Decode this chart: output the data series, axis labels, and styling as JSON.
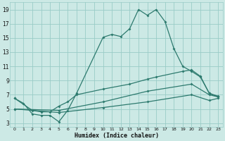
{
  "bg_color": "#cce9e5",
  "grid_color": "#99ccc7",
  "line_color": "#2d7a6e",
  "xlabel": "Humidex (Indice chaleur)",
  "xlim": [
    -0.5,
    23.5
  ],
  "ylim": [
    2.5,
    20.0
  ],
  "yticks": [
    3,
    5,
    7,
    9,
    11,
    13,
    15,
    17,
    19
  ],
  "xticks": [
    0,
    1,
    2,
    3,
    4,
    5,
    6,
    7,
    8,
    9,
    10,
    11,
    12,
    13,
    14,
    15,
    16,
    17,
    18,
    19,
    20,
    21,
    22,
    23
  ],
  "series1_x": [
    0,
    1,
    2,
    3,
    4,
    5,
    6,
    7,
    10,
    11,
    12,
    13,
    14,
    15,
    16,
    17,
    18,
    19,
    20,
    21,
    22,
    23
  ],
  "series1_y": [
    6.5,
    5.8,
    4.3,
    4.1,
    4.1,
    3.2,
    4.8,
    7.2,
    15.1,
    15.5,
    15.2,
    16.3,
    19.0,
    18.2,
    19.0,
    17.3,
    13.5,
    11.0,
    10.3,
    9.5,
    7.2,
    6.7
  ],
  "series2_x": [
    0,
    2,
    3,
    4,
    5,
    6,
    7,
    10,
    13,
    15,
    16,
    19,
    20,
    21,
    22,
    23
  ],
  "series2_y": [
    6.5,
    4.8,
    4.6,
    4.6,
    5.4,
    6.0,
    7.0,
    7.8,
    8.5,
    9.2,
    9.5,
    10.3,
    10.5,
    9.6,
    7.2,
    6.8
  ],
  "series3_x": [
    0,
    5,
    10,
    15,
    20,
    22,
    23
  ],
  "series3_y": [
    5.0,
    4.8,
    6.0,
    7.5,
    8.5,
    7.0,
    6.7
  ],
  "series4_x": [
    0,
    5,
    10,
    15,
    20,
    22,
    23
  ],
  "series4_y": [
    5.0,
    4.5,
    5.2,
    6.0,
    7.0,
    6.2,
    6.5
  ]
}
